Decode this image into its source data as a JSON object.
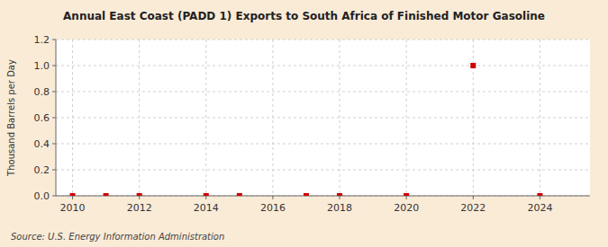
{
  "chart_data": {
    "type": "scatter",
    "title": "Annual East Coast (PADD 1) Exports to South Africa of Finished Motor Gasoline",
    "ylabel": "Thousand Barrels per Day",
    "annotations": [
      "Source: U.S. Energy Information Administration"
    ],
    "x": [
      2010,
      2011,
      2012,
      2014,
      2015,
      2017,
      2018,
      2020,
      2022,
      2024
    ],
    "values": [
      0.0,
      0.0,
      0.0,
      0.0,
      0.0,
      0.0,
      0.0,
      0.0,
      1.0,
      0.0
    ],
    "color": "#cc0000",
    "marker": "square",
    "line_style": "none",
    "xlim": [
      2009.5,
      2025.5
    ],
    "ylim": [
      0.0,
      1.2
    ],
    "xticks": [
      2010,
      2012,
      2014,
      2016,
      2018,
      2020,
      2022,
      2024
    ],
    "yticks": [
      {
        "value": 0.0,
        "label": "0.0"
      },
      0.2,
      0.4,
      0.6,
      0.8,
      {
        "value": 1.0,
        "label": "1.0"
      },
      1.2
    ],
    "grid": true
  }
}
